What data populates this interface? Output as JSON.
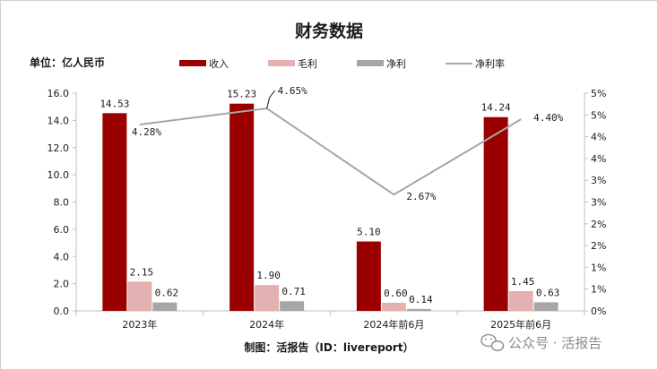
{
  "chart_data": {
    "type": "bar",
    "title": "财务数据",
    "unit_label": "单位：亿人民币",
    "categories": [
      "2023年",
      "2024年",
      "2024年前6月",
      "2025年前6月"
    ],
    "series": [
      {
        "name": "收入",
        "type": "bar",
        "values": [
          14.53,
          15.23,
          5.1,
          14.24
        ],
        "labels": [
          "14.53",
          "15.23",
          "5.10",
          "14.24"
        ],
        "color": "#9b0000"
      },
      {
        "name": "毛利",
        "type": "bar",
        "values": [
          2.15,
          1.9,
          0.6,
          1.45
        ],
        "labels": [
          "2.15",
          "1.90",
          "0.60",
          "1.45"
        ],
        "color": "#e3b1b1"
      },
      {
        "name": "净利",
        "type": "bar",
        "values": [
          0.62,
          0.71,
          0.14,
          0.63
        ],
        "labels": [
          "0.62",
          "0.71",
          "0.14",
          "0.63"
        ],
        "color": "#a6a6a6"
      },
      {
        "name": "净利率",
        "type": "line",
        "axis": "right",
        "values": [
          4.28,
          4.65,
          2.67,
          4.4
        ],
        "labels": [
          "4.28%",
          "4.65%",
          "2.67%",
          "4.40%"
        ],
        "color": "#a6a6a6"
      }
    ],
    "y_left": {
      "ylim": [
        0,
        16
      ],
      "ticks": [
        "0.0",
        "2.0",
        "4.0",
        "6.0",
        "8.0",
        "10.0",
        "12.0",
        "14.0",
        "16.0"
      ]
    },
    "y_right": {
      "ylim": [
        0,
        5
      ],
      "ticks": [
        "0%",
        "1%",
        "1%",
        "2%",
        "2%",
        "3%",
        "3%",
        "4%",
        "4%",
        "5%",
        "5%"
      ]
    },
    "grid": false,
    "legend_position": "top"
  },
  "footer": "制图：活报告（ID：livereport）",
  "watermark": "公众号 · 活报告",
  "watermark_icon": "wechat-icon"
}
